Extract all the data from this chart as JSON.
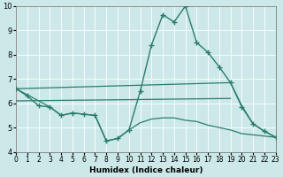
{
  "lines": [
    {
      "x": [
        0,
        1,
        2,
        3,
        4,
        5,
        6,
        7,
        8,
        9,
        10,
        11,
        12,
        13,
        14,
        15,
        16,
        17,
        18,
        19,
        20,
        21,
        22,
        23
      ],
      "y": [
        6.6,
        6.3,
        5.9,
        5.85,
        5.5,
        5.6,
        5.55,
        5.5,
        4.45,
        4.55,
        4.9,
        6.5,
        8.4,
        9.65,
        9.35,
        10.0,
        8.5,
        8.1,
        7.5,
        6.85,
        5.85,
        5.15,
        4.85,
        4.6
      ],
      "color": "#2a7d6b",
      "marker": "+",
      "markersize": 4,
      "markeredgewidth": 1.0,
      "linewidth": 1.0,
      "linestyle": "-"
    },
    {
      "x": [
        0,
        19,
        20,
        21,
        22,
        23
      ],
      "y": [
        6.6,
        6.85,
        5.9,
        5.15,
        4.85,
        4.6
      ],
      "color": "#2a7d6b",
      "marker": null,
      "markersize": 0,
      "markeredgewidth": 0,
      "linewidth": 0.9,
      "linestyle": "-"
    },
    {
      "x": [
        0,
        10,
        19
      ],
      "y": [
        6.1,
        6.15,
        6.2
      ],
      "color": "#2a7d6b",
      "marker": null,
      "markersize": 0,
      "markeredgewidth": 0,
      "linewidth": 0.9,
      "linestyle": "-"
    },
    {
      "x": [
        0,
        3,
        4,
        5,
        6,
        7,
        8,
        9,
        10,
        11,
        12,
        13,
        14,
        15,
        16,
        17,
        18,
        19,
        20,
        21,
        22,
        23
      ],
      "y": [
        6.6,
        5.85,
        5.5,
        5.6,
        5.55,
        5.5,
        4.45,
        4.55,
        4.9,
        5.2,
        5.35,
        5.4,
        5.4,
        5.3,
        5.25,
        5.1,
        5.0,
        4.9,
        4.75,
        4.7,
        4.65,
        4.6
      ],
      "color": "#2a7d6b",
      "marker": null,
      "markersize": 0,
      "markeredgewidth": 0,
      "linewidth": 0.9,
      "linestyle": "-"
    }
  ],
  "xlim": [
    0,
    23
  ],
  "ylim": [
    4.0,
    10.0
  ],
  "yticks": [
    4,
    5,
    6,
    7,
    8,
    9,
    10
  ],
  "xticks": [
    0,
    1,
    2,
    3,
    4,
    5,
    6,
    7,
    8,
    9,
    10,
    11,
    12,
    13,
    14,
    15,
    16,
    17,
    18,
    19,
    20,
    21,
    22,
    23
  ],
  "xlabel": "Humidex (Indice chaleur)",
  "xlabel_fontsize": 6.5,
  "tick_fontsize": 5.5,
  "ytick_fontsize": 6,
  "bg_color": "#cce8e8",
  "grid_color": "#ffffff",
  "line_color": "#2a7d6b"
}
